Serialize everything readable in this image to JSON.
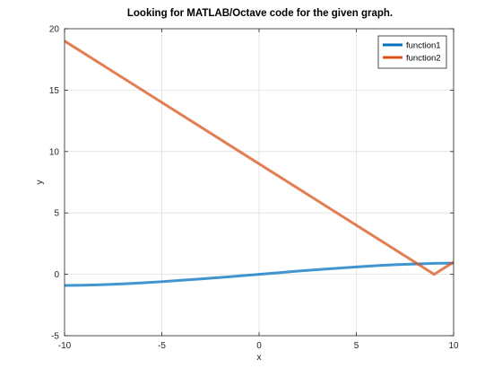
{
  "chart_data": {
    "type": "line",
    "title": "Looking for MATLAB/Octave code for the given graph.",
    "xlabel": "x",
    "ylabel": "y",
    "xlim": [
      -10,
      10
    ],
    "ylim": [
      -5,
      20
    ],
    "xticks": [
      -10,
      -5,
      0,
      5,
      10
    ],
    "yticks": [
      -5,
      0,
      5,
      10,
      15,
      20
    ],
    "grid": true,
    "legend": "top-right",
    "series": [
      {
        "name": "function1",
        "color": "#0072BD",
        "x": [
          -10,
          -9,
          -8,
          -7,
          -6,
          -5,
          -4,
          -3,
          -2,
          -1,
          0,
          1,
          2,
          3,
          4,
          5,
          6,
          7,
          8,
          9,
          10
        ],
        "y": [
          -0.91,
          -0.89,
          -0.84,
          -0.78,
          -0.7,
          -0.6,
          -0.49,
          -0.38,
          -0.26,
          -0.13,
          0,
          0.13,
          0.26,
          0.38,
          0.49,
          0.6,
          0.7,
          0.78,
          0.84,
          0.89,
          0.91
        ]
      },
      {
        "name": "function2",
        "color": "#D95319",
        "x": [
          -10,
          9,
          10
        ],
        "y": [
          19,
          0,
          1
        ]
      }
    ]
  }
}
